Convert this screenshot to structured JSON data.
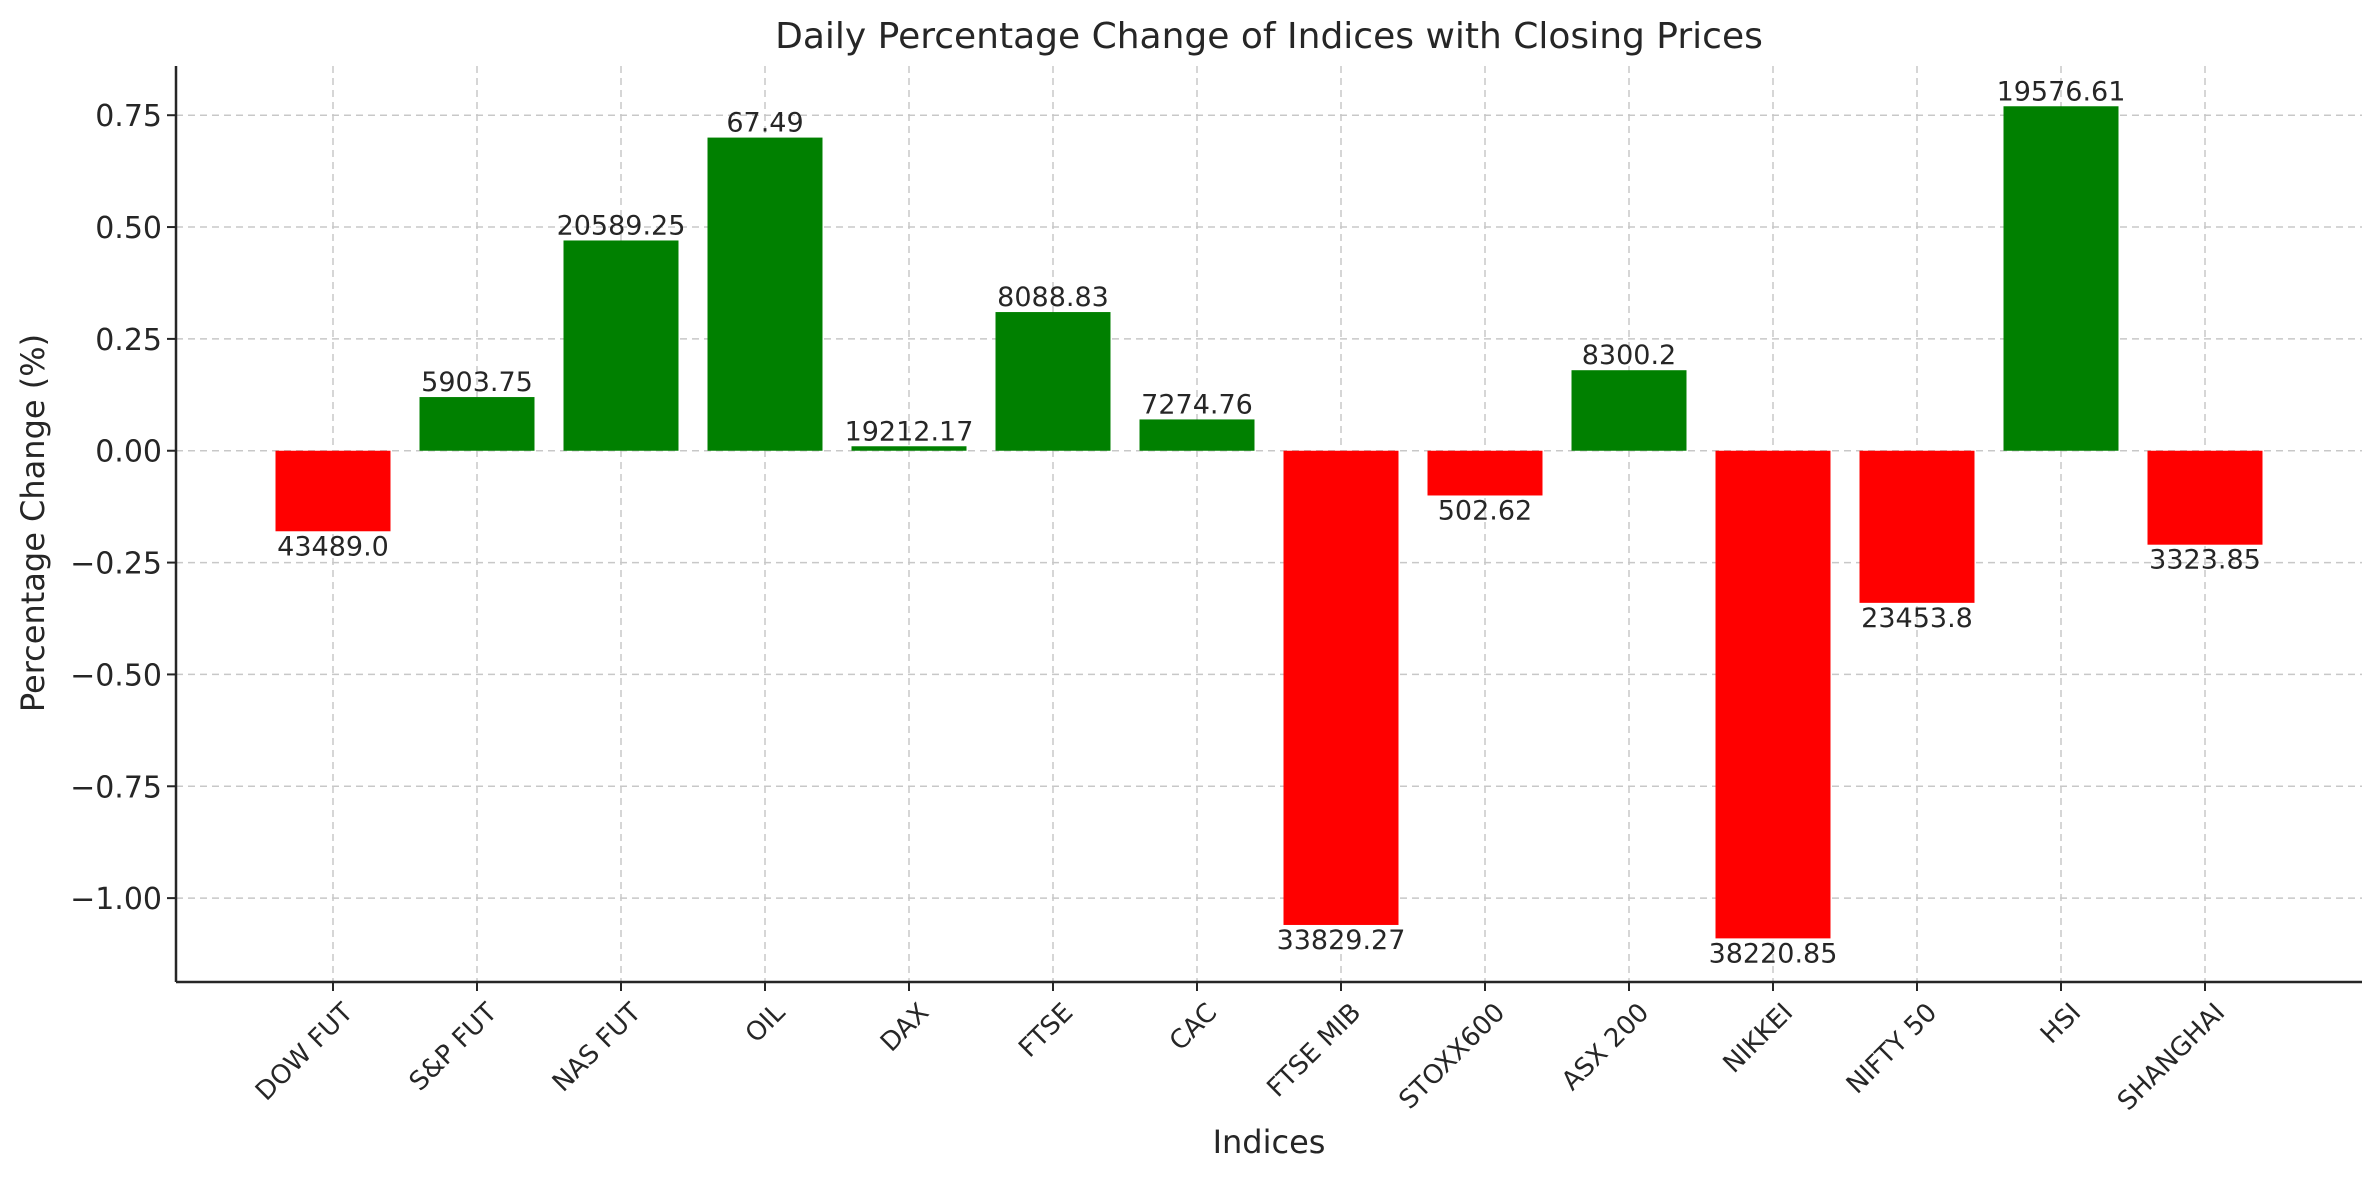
{
  "chart_data": {
    "type": "bar",
    "title": "Daily Percentage Change of Indices with Closing Prices",
    "xlabel": "Indices",
    "ylabel": "Percentage Change (%)",
    "ylim": [
      -1.1875,
      0.86
    ],
    "yticks": [
      -1.0,
      -0.75,
      -0.5,
      -0.25,
      0.0,
      0.25,
      0.5,
      0.75
    ],
    "ytick_labels": [
      "−1.00",
      "−0.75",
      "−0.50",
      "−0.25",
      "0.00",
      "0.25",
      "0.50",
      "0.75"
    ],
    "grid": true,
    "categories": [
      "DOW FUT",
      "S&P FUT",
      "NAS FUT",
      "OIL",
      "DAX",
      "FTSE",
      "CAC",
      "FTSE MIB",
      "STOXX600",
      "ASX 200",
      "NIKKEI",
      "NIFTY 50",
      "HSI",
      "SHANGHAI"
    ],
    "values": [
      -0.18,
      0.12,
      0.47,
      0.7,
      0.01,
      0.31,
      0.07,
      -1.06,
      -0.1,
      0.18,
      -1.09,
      -0.34,
      0.77,
      -0.21
    ],
    "data_labels": [
      "43489.0",
      "5903.75",
      "20589.25",
      "67.49",
      "19212.17",
      "8088.83",
      "7274.76",
      "33829.27",
      "502.62",
      "8300.2",
      "38220.85",
      "23453.8",
      "19576.61",
      "3323.85"
    ],
    "colors": {
      "positive": "#008000",
      "negative": "#ff0000"
    }
  }
}
